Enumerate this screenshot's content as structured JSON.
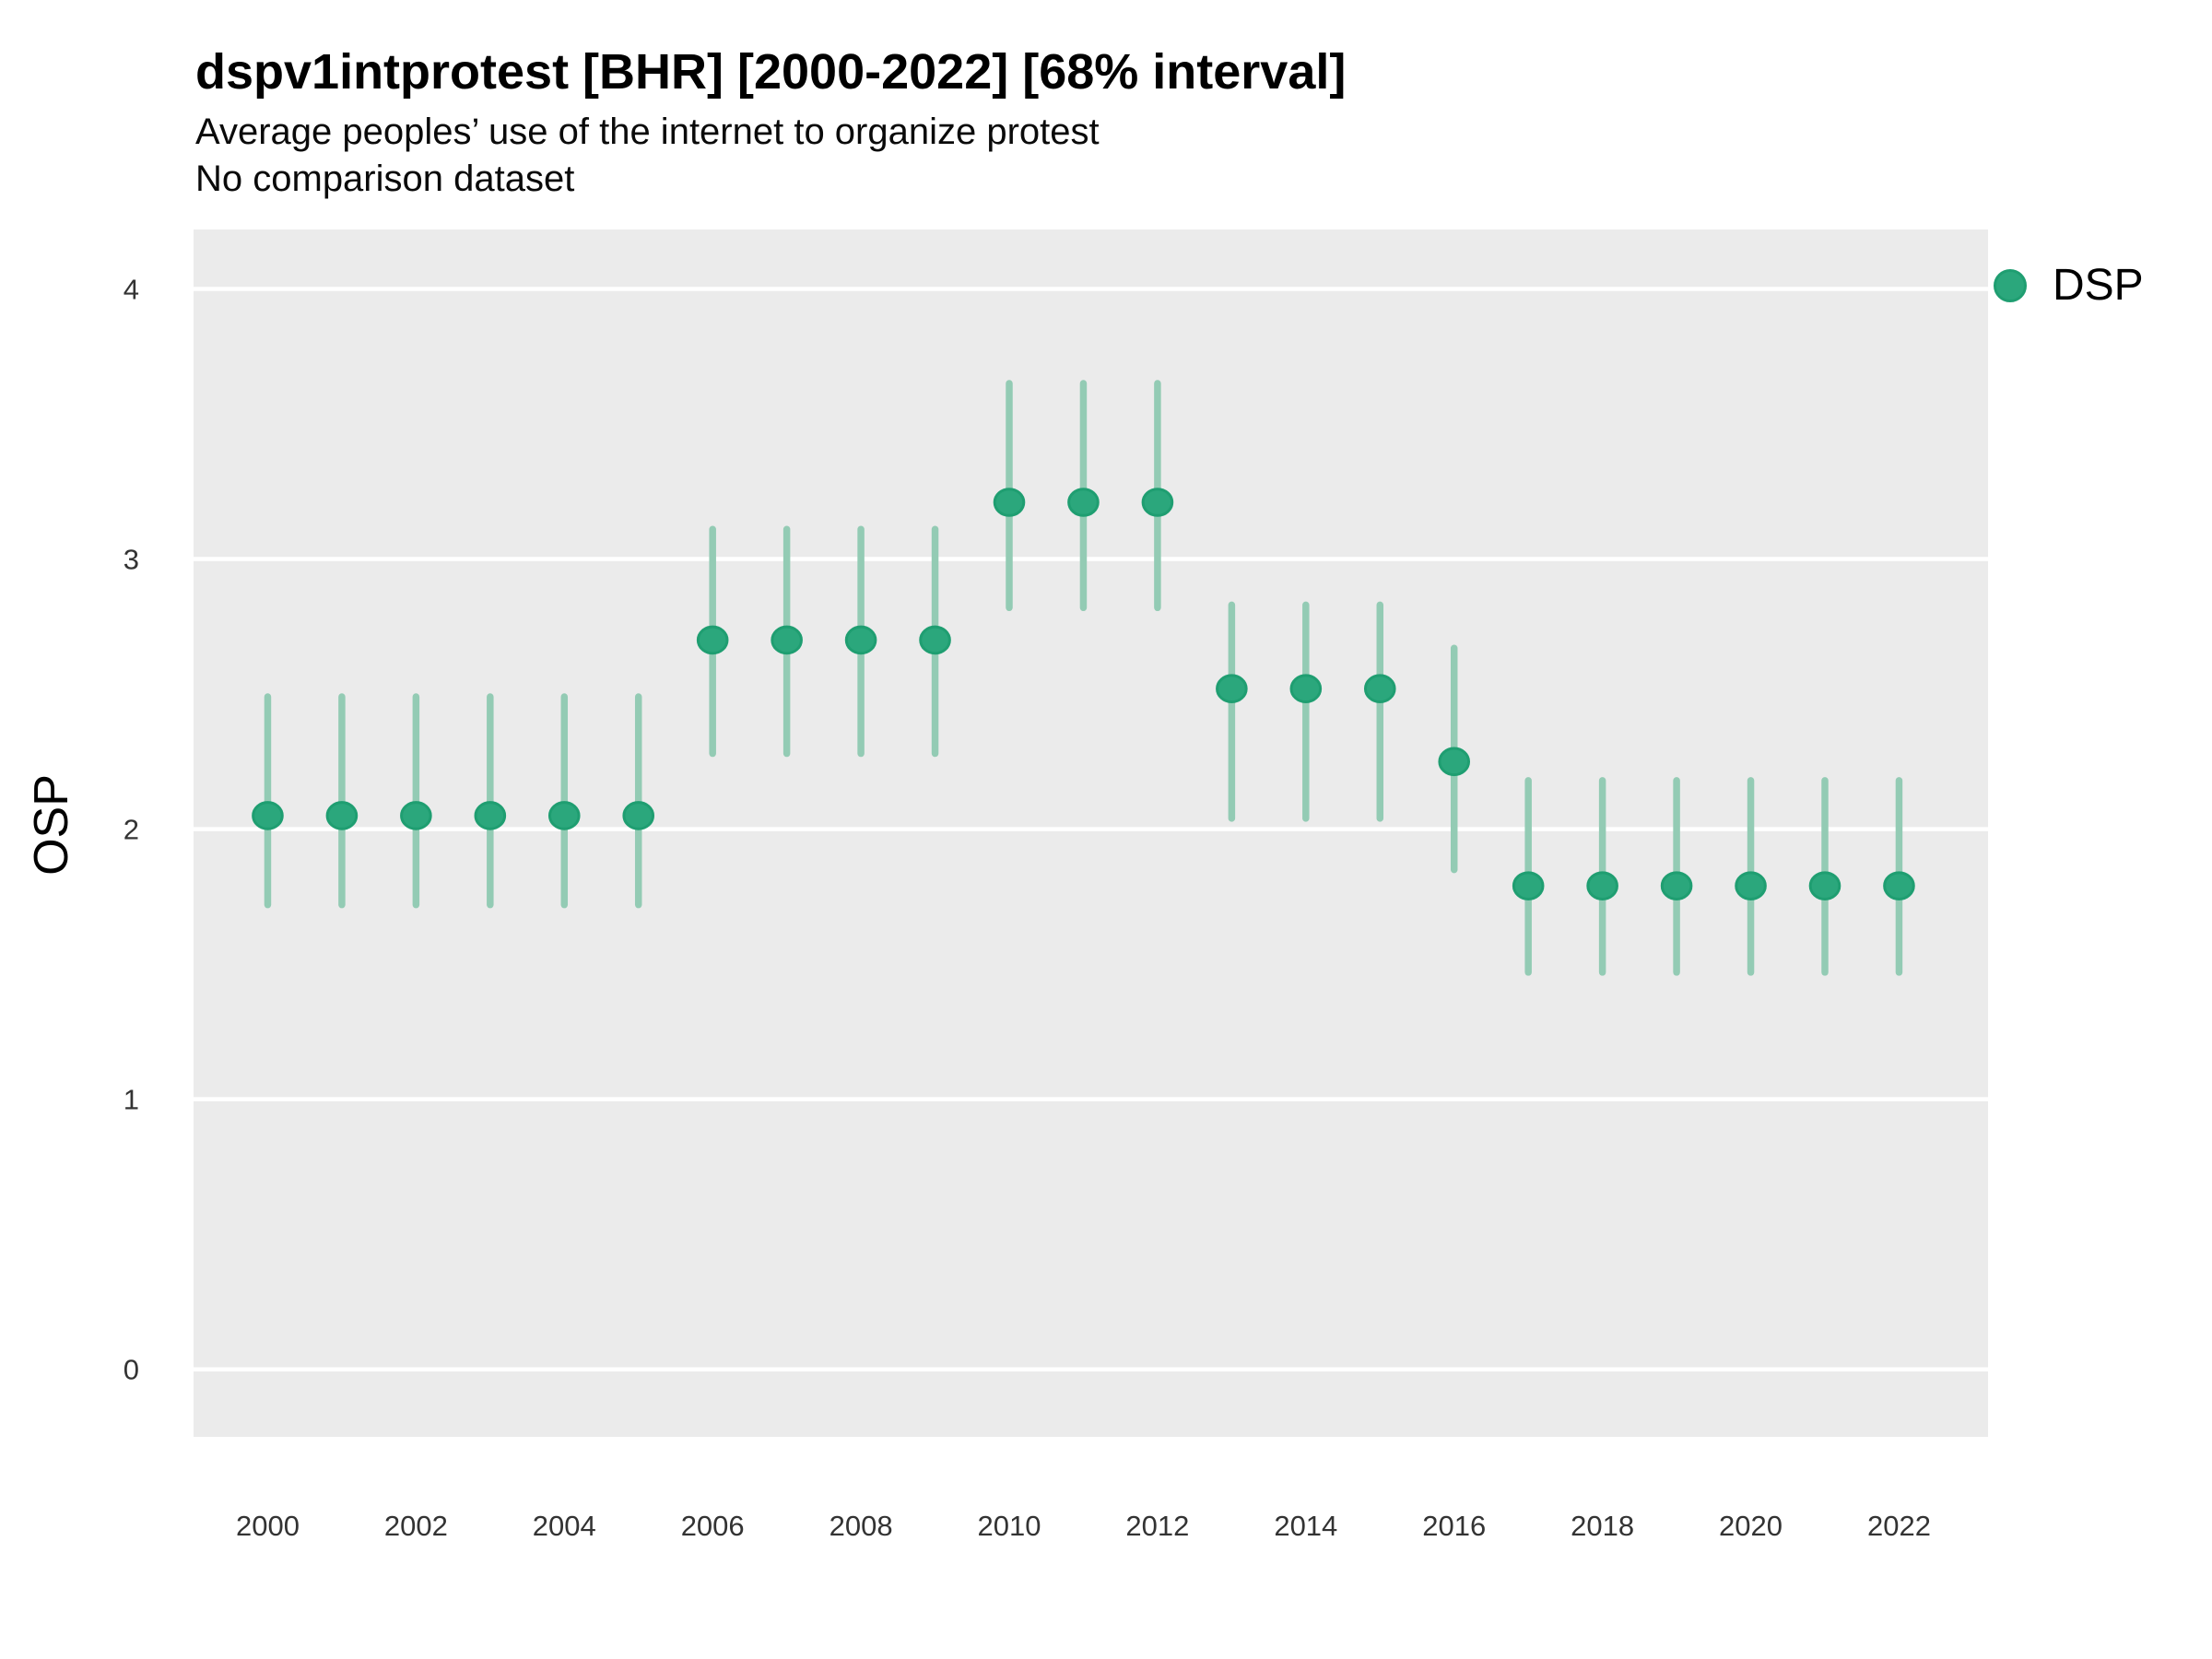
{
  "chart_data": {
    "type": "scatter",
    "title": "dspv1intprotest [BHR] [2000-2022] [68% interval]",
    "subtitle": "Average peoples’ use of the internet to organize protest",
    "comparison_note": "No comparison dataset",
    "interval_level": "68%",
    "xlabel": "",
    "ylabel": "OSP",
    "xlim": [
      1999.0,
      2023.2
    ],
    "ylim": [
      -0.25,
      4.22
    ],
    "x_ticks": [
      2000,
      2002,
      2004,
      2006,
      2008,
      2010,
      2012,
      2014,
      2016,
      2018,
      2020,
      2022
    ],
    "y_ticks": [
      0,
      1,
      2,
      3,
      4
    ],
    "grid": {
      "major": "on",
      "minor": "off"
    },
    "legend": {
      "position": "right",
      "items": [
        {
          "label": "DSP",
          "color": "#2BA77C"
        }
      ]
    },
    "colors": {
      "panel": "#EBEBEB",
      "gridline": "#FFFFFF",
      "point_fill": "#2BA77C",
      "point_stroke": "#1F9E71",
      "interval_line": "#93CBB4",
      "tick_text": "#333333",
      "text": "#000000"
    },
    "series": [
      {
        "name": "DSP",
        "points": [
          {
            "year": 2000,
            "est": 2.05,
            "lo": 1.72,
            "hi": 2.49
          },
          {
            "year": 2001,
            "est": 2.05,
            "lo": 1.72,
            "hi": 2.49
          },
          {
            "year": 2002,
            "est": 2.05,
            "lo": 1.72,
            "hi": 2.49
          },
          {
            "year": 2003,
            "est": 2.05,
            "lo": 1.72,
            "hi": 2.49
          },
          {
            "year": 2004,
            "est": 2.05,
            "lo": 1.72,
            "hi": 2.49
          },
          {
            "year": 2005,
            "est": 2.05,
            "lo": 1.72,
            "hi": 2.49
          },
          {
            "year": 2006,
            "est": 2.7,
            "lo": 2.28,
            "hi": 3.11
          },
          {
            "year": 2007,
            "est": 2.7,
            "lo": 2.28,
            "hi": 3.11
          },
          {
            "year": 2008,
            "est": 2.7,
            "lo": 2.28,
            "hi": 3.11
          },
          {
            "year": 2009,
            "est": 2.7,
            "lo": 2.28,
            "hi": 3.11
          },
          {
            "year": 2010,
            "est": 3.21,
            "lo": 2.82,
            "hi": 3.65
          },
          {
            "year": 2011,
            "est": 3.21,
            "lo": 2.82,
            "hi": 3.65
          },
          {
            "year": 2012,
            "est": 3.21,
            "lo": 2.82,
            "hi": 3.65
          },
          {
            "year": 2013,
            "est": 2.52,
            "lo": 2.04,
            "hi": 2.83
          },
          {
            "year": 2014,
            "est": 2.52,
            "lo": 2.04,
            "hi": 2.83
          },
          {
            "year": 2015,
            "est": 2.52,
            "lo": 2.04,
            "hi": 2.83
          },
          {
            "year": 2016,
            "est": 2.25,
            "lo": 1.85,
            "hi": 2.67
          },
          {
            "year": 2017,
            "est": 1.79,
            "lo": 1.47,
            "hi": 2.18
          },
          {
            "year": 2018,
            "est": 1.79,
            "lo": 1.47,
            "hi": 2.18
          },
          {
            "year": 2019,
            "est": 1.79,
            "lo": 1.47,
            "hi": 2.18
          },
          {
            "year": 2020,
            "est": 1.79,
            "lo": 1.47,
            "hi": 2.18
          },
          {
            "year": 2021,
            "est": 1.79,
            "lo": 1.47,
            "hi": 2.18
          },
          {
            "year": 2022,
            "est": 1.79,
            "lo": 1.47,
            "hi": 2.18
          }
        ]
      }
    ]
  }
}
